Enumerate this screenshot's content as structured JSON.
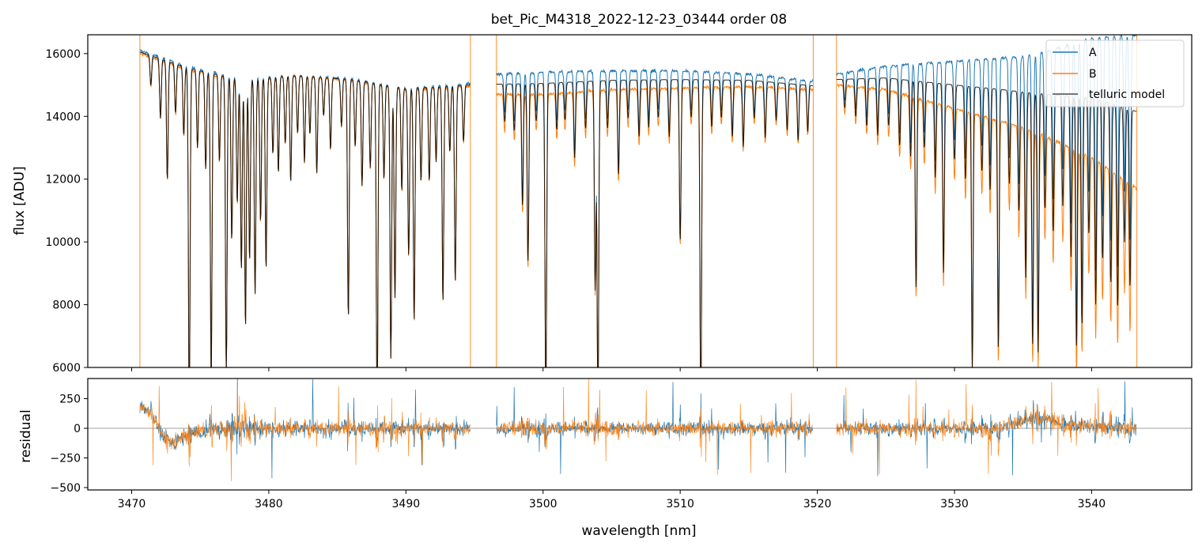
{
  "chart_data": [
    {
      "type": "line",
      "panel": "top",
      "title": "bet_Pic_M4318_2022-12-23_03444  order 08",
      "xlabel": "",
      "ylabel": "flux [ADU]",
      "xlim": [
        3466.8,
        3547.3
      ],
      "ylim": [
        6000,
        16600
      ],
      "xticks": [
        3470,
        3480,
        3490,
        3500,
        3510,
        3520,
        3530,
        3540
      ],
      "yticks": [
        6000,
        8000,
        10000,
        12000,
        14000,
        16000
      ],
      "ytick_labels": [
        "6000",
        "8000",
        "10000",
        "12000",
        "14000",
        "16000"
      ],
      "grid": false,
      "legend_position": "top-right",
      "segments": [
        [
          3470.6,
          3494.7
        ],
        [
          3496.6,
          3519.7
        ],
        [
          3521.4,
          3543.3
        ]
      ],
      "vertical_lines_x": [
        3470.6,
        3494.7,
        3496.6,
        3519.7,
        3521.4,
        3543.3
      ],
      "series": [
        {
          "name": "A",
          "color": "#1f77b4",
          "continuum_x": [
            3470.6,
            3474,
            3478,
            3482,
            3486,
            3490,
            3494.7,
            3496.6,
            3500,
            3505,
            3510,
            3515,
            3519.7,
            3521.4,
            3525,
            3530,
            3533,
            3535,
            3537,
            3540,
            3543.3
          ],
          "continuum_y": [
            16100,
            15600,
            15200,
            15300,
            15200,
            14900,
            15050,
            15350,
            15400,
            15450,
            15450,
            15350,
            15100,
            15350,
            15600,
            15750,
            15850,
            15900,
            16100,
            16500,
            16600
          ]
        },
        {
          "name": "B",
          "color": "#ff7f0e",
          "continuum_x": [
            3470.6,
            3474,
            3478,
            3482,
            3486,
            3490,
            3494.7,
            3496.6,
            3500,
            3505,
            3510,
            3515,
            3519.7,
            3521.4,
            3525,
            3530,
            3533,
            3535,
            3537,
            3540,
            3543.3
          ],
          "continuum_y": [
            16000,
            15500,
            15100,
            15300,
            15150,
            14850,
            14950,
            14700,
            14700,
            14850,
            14900,
            14950,
            14850,
            15000,
            14850,
            14250,
            13900,
            13650,
            13300,
            12700,
            11700
          ]
        },
        {
          "name": "telluric model",
          "color": "#000000"
        }
      ],
      "absorption_lines": [
        {
          "x": 3471.4,
          "depth": 0.06
        },
        {
          "x": 3472.1,
          "depth": 0.12
        },
        {
          "x": 3472.6,
          "depth": 0.24
        },
        {
          "x": 3473.2,
          "depth": 0.1
        },
        {
          "x": 3473.8,
          "depth": 0.14
        },
        {
          "x": 3474.2,
          "depth": 0.7
        },
        {
          "x": 3474.8,
          "depth": 0.16
        },
        {
          "x": 3475.4,
          "depth": 0.2
        },
        {
          "x": 3475.8,
          "depth": 0.64
        },
        {
          "x": 3476.4,
          "depth": 0.18
        },
        {
          "x": 3476.9,
          "depth": 0.62
        },
        {
          "x": 3477.3,
          "depth": 0.34
        },
        {
          "x": 3477.7,
          "depth": 0.26
        },
        {
          "x": 3478.0,
          "depth": 0.4
        },
        {
          "x": 3478.3,
          "depth": 0.52
        },
        {
          "x": 3478.6,
          "depth": 0.38
        },
        {
          "x": 3479.0,
          "depth": 0.45
        },
        {
          "x": 3479.4,
          "depth": 0.3
        },
        {
          "x": 3479.8,
          "depth": 0.4
        },
        {
          "x": 3480.3,
          "depth": 0.16
        },
        {
          "x": 3480.7,
          "depth": 0.2
        },
        {
          "x": 3481.2,
          "depth": 0.14
        },
        {
          "x": 3481.6,
          "depth": 0.22
        },
        {
          "x": 3482.1,
          "depth": 0.12
        },
        {
          "x": 3482.6,
          "depth": 0.18
        },
        {
          "x": 3483.0,
          "depth": 0.12
        },
        {
          "x": 3483.5,
          "depth": 0.2
        },
        {
          "x": 3484.0,
          "depth": 0.08
        },
        {
          "x": 3484.5,
          "depth": 0.15
        },
        {
          "x": 3485.3,
          "depth": 0.1
        },
        {
          "x": 3485.8,
          "depth": 0.5
        },
        {
          "x": 3486.3,
          "depth": 0.14
        },
        {
          "x": 3486.8,
          "depth": 0.22
        },
        {
          "x": 3487.4,
          "depth": 0.18
        },
        {
          "x": 3487.9,
          "depth": 0.7
        },
        {
          "x": 3488.4,
          "depth": 0.2
        },
        {
          "x": 3488.9,
          "depth": 0.58
        },
        {
          "x": 3489.2,
          "depth": 0.45
        },
        {
          "x": 3489.7,
          "depth": 0.22
        },
        {
          "x": 3490.2,
          "depth": 0.36
        },
        {
          "x": 3490.6,
          "depth": 0.5
        },
        {
          "x": 3491.1,
          "depth": 0.2
        },
        {
          "x": 3491.7,
          "depth": 0.2
        },
        {
          "x": 3492.2,
          "depth": 0.16
        },
        {
          "x": 3492.7,
          "depth": 0.46
        },
        {
          "x": 3493.2,
          "depth": 0.14
        },
        {
          "x": 3493.6,
          "depth": 0.42
        },
        {
          "x": 3494.2,
          "depth": 0.12
        },
        {
          "x": 3497.2,
          "depth": 0.08
        },
        {
          "x": 3497.9,
          "depth": 0.1
        },
        {
          "x": 3498.5,
          "depth": 0.26
        },
        {
          "x": 3498.9,
          "depth": 0.38
        },
        {
          "x": 3499.5,
          "depth": 0.08
        },
        {
          "x": 3500.2,
          "depth": 0.68
        },
        {
          "x": 3501.0,
          "depth": 0.1
        },
        {
          "x": 3501.6,
          "depth": 0.08
        },
        {
          "x": 3502.3,
          "depth": 0.16
        },
        {
          "x": 3503.1,
          "depth": 0.1
        },
        {
          "x": 3503.8,
          "depth": 0.44
        },
        {
          "x": 3504.0,
          "depth": 0.7
        },
        {
          "x": 3504.7,
          "depth": 0.1
        },
        {
          "x": 3505.5,
          "depth": 0.2
        },
        {
          "x": 3506.2,
          "depth": 0.08
        },
        {
          "x": 3507.0,
          "depth": 0.12
        },
        {
          "x": 3507.7,
          "depth": 0.1
        },
        {
          "x": 3508.4,
          "depth": 0.08
        },
        {
          "x": 3509.2,
          "depth": 0.12
        },
        {
          "x": 3510.0,
          "depth": 0.34
        },
        {
          "x": 3510.8,
          "depth": 0.08
        },
        {
          "x": 3511.5,
          "depth": 0.7
        },
        {
          "x": 3512.3,
          "depth": 0.1
        },
        {
          "x": 3513.0,
          "depth": 0.08
        },
        {
          "x": 3513.8,
          "depth": 0.12
        },
        {
          "x": 3514.6,
          "depth": 0.14
        },
        {
          "x": 3515.4,
          "depth": 0.08
        },
        {
          "x": 3516.2,
          "depth": 0.12
        },
        {
          "x": 3517.0,
          "depth": 0.08
        },
        {
          "x": 3517.8,
          "depth": 0.1
        },
        {
          "x": 3518.6,
          "depth": 0.12
        },
        {
          "x": 3519.3,
          "depth": 0.1
        },
        {
          "x": 3522.0,
          "depth": 0.06
        },
        {
          "x": 3522.8,
          "depth": 0.08
        },
        {
          "x": 3523.6,
          "depth": 0.1
        },
        {
          "x": 3524.4,
          "depth": 0.12
        },
        {
          "x": 3525.2,
          "depth": 0.1
        },
        {
          "x": 3526.0,
          "depth": 0.14
        },
        {
          "x": 3526.8,
          "depth": 0.16
        },
        {
          "x": 3527.2,
          "depth": 0.44
        },
        {
          "x": 3527.8,
          "depth": 0.14
        },
        {
          "x": 3528.6,
          "depth": 0.2
        },
        {
          "x": 3529.2,
          "depth": 0.4
        },
        {
          "x": 3530.0,
          "depth": 0.16
        },
        {
          "x": 3530.8,
          "depth": 0.2
        },
        {
          "x": 3531.3,
          "depth": 0.6
        },
        {
          "x": 3532.0,
          "depth": 0.18
        },
        {
          "x": 3532.6,
          "depth": 0.22
        },
        {
          "x": 3533.2,
          "depth": 0.56
        },
        {
          "x": 3534.0,
          "depth": 0.2
        },
        {
          "x": 3534.7,
          "depth": 0.26
        },
        {
          "x": 3535.2,
          "depth": 0.4
        },
        {
          "x": 3535.7,
          "depth": 0.55
        },
        {
          "x": 3536.1,
          "depth": 0.56
        },
        {
          "x": 3536.6,
          "depth": 0.25
        },
        {
          "x": 3537.2,
          "depth": 0.3
        },
        {
          "x": 3537.9,
          "depth": 0.24
        },
        {
          "x": 3538.5,
          "depth": 0.35
        },
        {
          "x": 3538.9,
          "depth": 0.55
        },
        {
          "x": 3539.3,
          "depth": 0.5
        },
        {
          "x": 3539.8,
          "depth": 0.3
        },
        {
          "x": 3540.3,
          "depth": 0.45
        },
        {
          "x": 3540.8,
          "depth": 0.35
        },
        {
          "x": 3541.4,
          "depth": 0.4
        },
        {
          "x": 3541.9,
          "depth": 0.45
        },
        {
          "x": 3542.4,
          "depth": 0.3
        },
        {
          "x": 3542.8,
          "depth": 0.4
        }
      ]
    },
    {
      "type": "line",
      "panel": "bottom",
      "title": "",
      "xlabel": "wavelength [nm]",
      "ylabel": "residual",
      "xlim": [
        3466.8,
        3547.3
      ],
      "ylim": [
        -520,
        420
      ],
      "xticks": [
        3470,
        3480,
        3490,
        3500,
        3510,
        3520,
        3530,
        3540
      ],
      "xtick_labels": [
        "3470",
        "3480",
        "3490",
        "3500",
        "3510",
        "3520",
        "3530",
        "3540"
      ],
      "yticks": [
        -500,
        -250,
        0,
        250
      ],
      "ytick_labels": [
        "−500",
        "−250",
        "0",
        "250"
      ],
      "grid": false,
      "zero_line": 0,
      "series": [
        {
          "name": "A",
          "color": "#1f77b4",
          "noise_amplitude": 90
        },
        {
          "name": "B",
          "color": "#ff7f0e",
          "noise_amplitude": 90
        }
      ],
      "trend_points_x": [
        3470.6,
        3471.5,
        3472.3,
        3473.0,
        3474.0,
        3476,
        3494.7,
        3496.6,
        3519.7,
        3521.4,
        3533,
        3535,
        3536.5,
        3538,
        3543.3
      ],
      "trend_points_y": [
        180,
        120,
        -60,
        -130,
        -60,
        0,
        0,
        0,
        0,
        0,
        0,
        60,
        90,
        30,
        0
      ]
    }
  ]
}
